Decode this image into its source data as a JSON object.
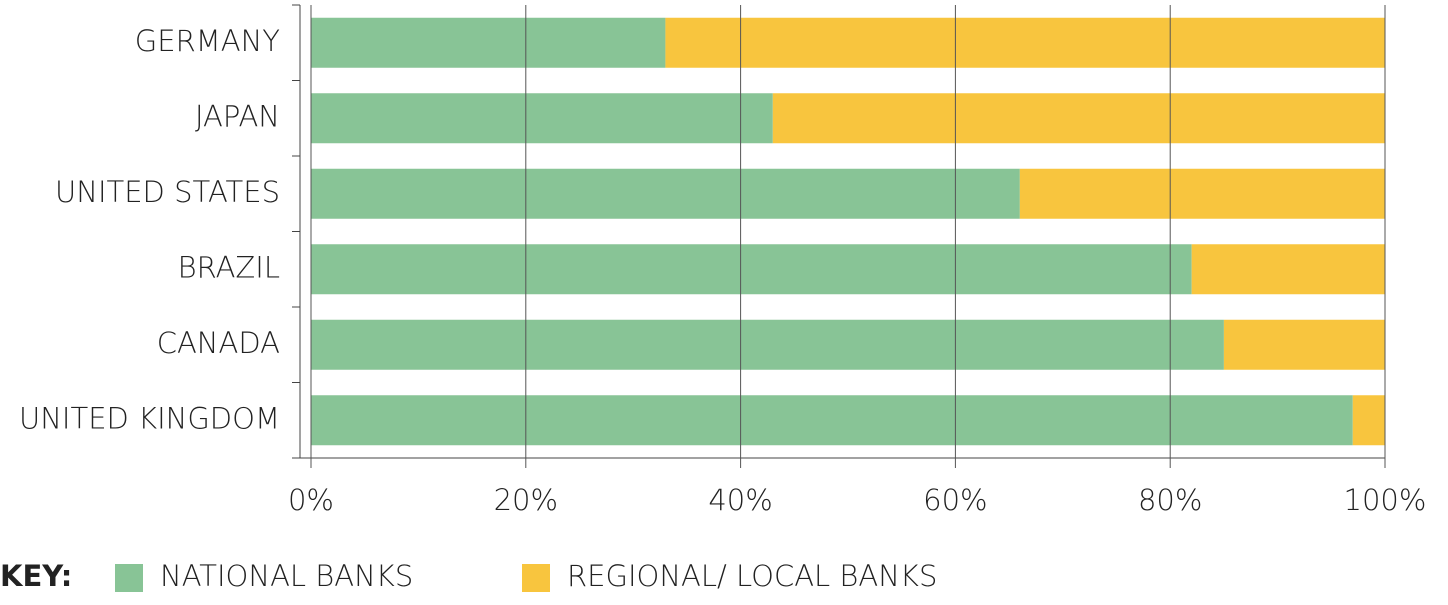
{
  "chart_data": {
    "type": "stacked-bar-horizontal",
    "categories": [
      "GERMANY",
      "JAPAN",
      "UNITED STATES",
      "BRAZIL",
      "CANADA",
      "UNITED KINGDOM"
    ],
    "series": [
      {
        "name": "NATIONAL BANKS",
        "color": "#88c496",
        "values": [
          33,
          43,
          66,
          82,
          85,
          97
        ]
      },
      {
        "name": "REGIONAL/ LOCAL BANKS",
        "color": "#f8c53e",
        "values": [
          67,
          57,
          34,
          18,
          15,
          3
        ]
      }
    ],
    "xlim": [
      0,
      100
    ],
    "xticks": [
      {
        "value": 0,
        "label": "0%"
      },
      {
        "value": 20,
        "label": "20%"
      },
      {
        "value": 40,
        "label": "40%"
      },
      {
        "value": 60,
        "label": "60%"
      },
      {
        "value": 80,
        "label": "80%"
      },
      {
        "value": 100,
        "label": "100%"
      }
    ],
    "grid": true,
    "legend_title": "KEY:",
    "legend_position": "bottom"
  }
}
